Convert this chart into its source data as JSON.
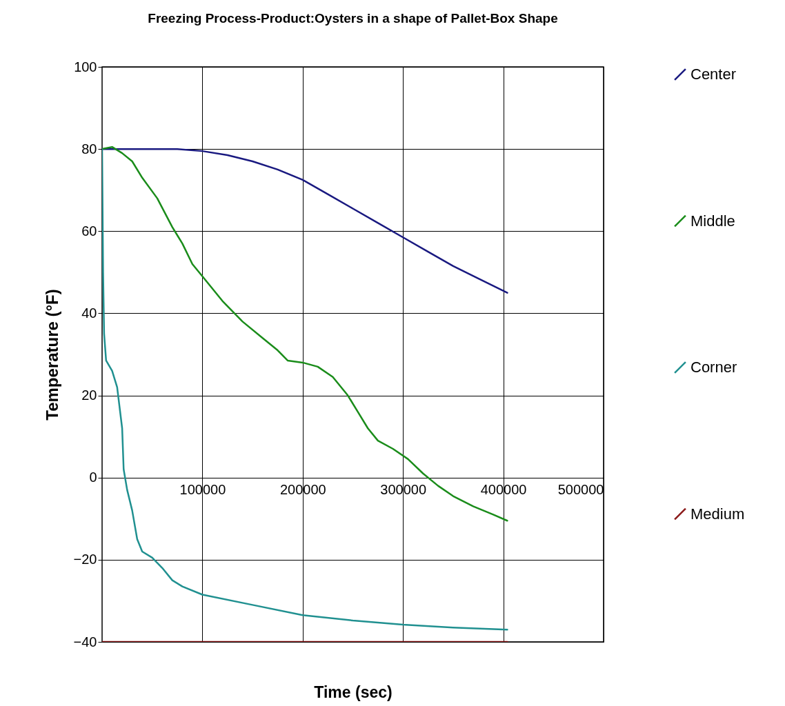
{
  "chart_data": {
    "type": "line",
    "title": "Freezing Process-Product:Oysters in a shape of Pallet-Box Shape",
    "xlabel": "Time (sec)",
    "ylabel": "Temperature (°F)",
    "xlim": [
      0,
      500000
    ],
    "xticks": [
      100000,
      200000,
      300000,
      400000,
      500000
    ],
    "ylim": [
      -40,
      100
    ],
    "yticks": [
      -40,
      -20,
      0,
      20,
      40,
      60,
      80,
      100
    ],
    "grid": true,
    "legend": "right",
    "series": [
      {
        "name": "Center",
        "color": "#191980",
        "x": [
          0,
          50000,
          75000,
          100000,
          125000,
          150000,
          175000,
          200000,
          225000,
          250000,
          275000,
          300000,
          325000,
          350000,
          375000,
          404000
        ],
        "values": [
          80,
          80,
          80,
          79.5,
          78.5,
          77,
          75,
          72.5,
          69,
          65.5,
          62,
          58.5,
          55,
          51.5,
          48.5,
          45
        ]
      },
      {
        "name": "Middle",
        "color": "#1a8c1a",
        "x": [
          0,
          10000,
          20000,
          30000,
          40000,
          55000,
          70000,
          80000,
          90000,
          100000,
          120000,
          140000,
          160000,
          175000,
          185000,
          200000,
          215000,
          230000,
          245000,
          255000,
          265000,
          275000,
          290000,
          305000,
          320000,
          335000,
          350000,
          370000,
          390000,
          404000
        ],
        "values": [
          80,
          80.5,
          79,
          77,
          73,
          68,
          61,
          57,
          52,
          49,
          43,
          38,
          34,
          31,
          28.5,
          28,
          27,
          24.5,
          20,
          16,
          12,
          9,
          7,
          4.5,
          1,
          -2,
          -4.5,
          -7,
          -9,
          -10.5
        ]
      },
      {
        "name": "Corner",
        "color": "#209090",
        "x": [
          0,
          1000,
          2000,
          4000,
          10000,
          15000,
          20000,
          21500,
          25000,
          30000,
          35000,
          40000,
          50000,
          60000,
          70000,
          80000,
          100000,
          150000,
          200000,
          250000,
          300000,
          350000,
          404000
        ],
        "values": [
          80,
          50,
          35,
          28.5,
          26,
          22,
          12,
          2,
          -3,
          -8,
          -15,
          -18,
          -19.5,
          -22,
          -25,
          -26.5,
          -28.5,
          -31,
          -33.5,
          -34.8,
          -35.8,
          -36.5,
          -37
        ]
      },
      {
        "name": "Medium",
        "color": "#8b1a1a",
        "x": [
          0,
          404000
        ],
        "values": [
          -40,
          -40
        ]
      }
    ]
  }
}
